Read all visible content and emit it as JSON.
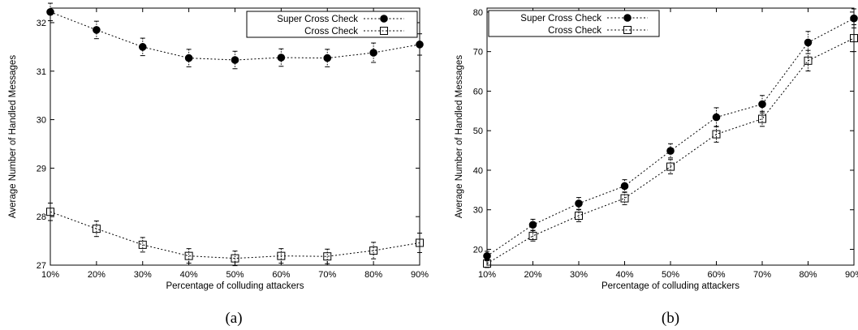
{
  "chart_data": [
    {
      "type": "line",
      "caption": "(a)",
      "xlabel": "Percentage of colluding attackers",
      "ylabel": "Average Number of Handled Messages",
      "categories": [
        "10%",
        "20%",
        "30%",
        "40%",
        "50%",
        "60%",
        "70%",
        "80%",
        "90%"
      ],
      "ylim": [
        27,
        32.3
      ],
      "yticks": [
        27,
        28,
        29,
        30,
        31,
        32
      ],
      "legend": "top-right",
      "series": [
        {
          "name": "Super Cross Check",
          "marker": "filled-circle",
          "values": [
            32.22,
            31.85,
            31.5,
            31.27,
            31.23,
            31.28,
            31.27,
            31.38,
            31.55
          ],
          "errors": [
            0.18,
            0.18,
            0.18,
            0.18,
            0.18,
            0.18,
            0.18,
            0.2,
            0.22
          ]
        },
        {
          "name": "Cross Check",
          "marker": "open-square",
          "values": [
            28.1,
            27.75,
            27.42,
            27.19,
            27.14,
            27.19,
            27.18,
            27.3,
            27.46
          ],
          "errors": [
            0.18,
            0.16,
            0.15,
            0.15,
            0.15,
            0.15,
            0.15,
            0.17,
            0.2
          ]
        }
      ]
    },
    {
      "type": "line",
      "caption": "(b)",
      "xlabel": "Percentage of colluding attackers",
      "ylabel": "Average Number of Handled Messages",
      "categories": [
        "10%",
        "20%",
        "30%",
        "40%",
        "50%",
        "60%",
        "70%",
        "80%",
        "90%"
      ],
      "ylim": [
        16,
        81
      ],
      "yticks": [
        20,
        30,
        40,
        50,
        60,
        70,
        80
      ],
      "legend": "top-left",
      "series": [
        {
          "name": "Super Cross Check",
          "marker": "filled-circle",
          "values": [
            18.3,
            26.2,
            31.6,
            36,
            44.9,
            53.4,
            56.7,
            72.3,
            78.4
          ],
          "errors": [
            1.2,
            1.4,
            1.5,
            1.6,
            1.8,
            2.4,
            2.2,
            2.8,
            2.4
          ]
        },
        {
          "name": "Cross Check",
          "marker": "open-square",
          "values": [
            16.4,
            23.4,
            28.5,
            32.9,
            40.9,
            49.1,
            53,
            67.7,
            73.4
          ],
          "errors": [
            1.0,
            1.3,
            1.5,
            1.6,
            1.8,
            2.0,
            1.9,
            2.6,
            3.4
          ]
        }
      ]
    }
  ]
}
